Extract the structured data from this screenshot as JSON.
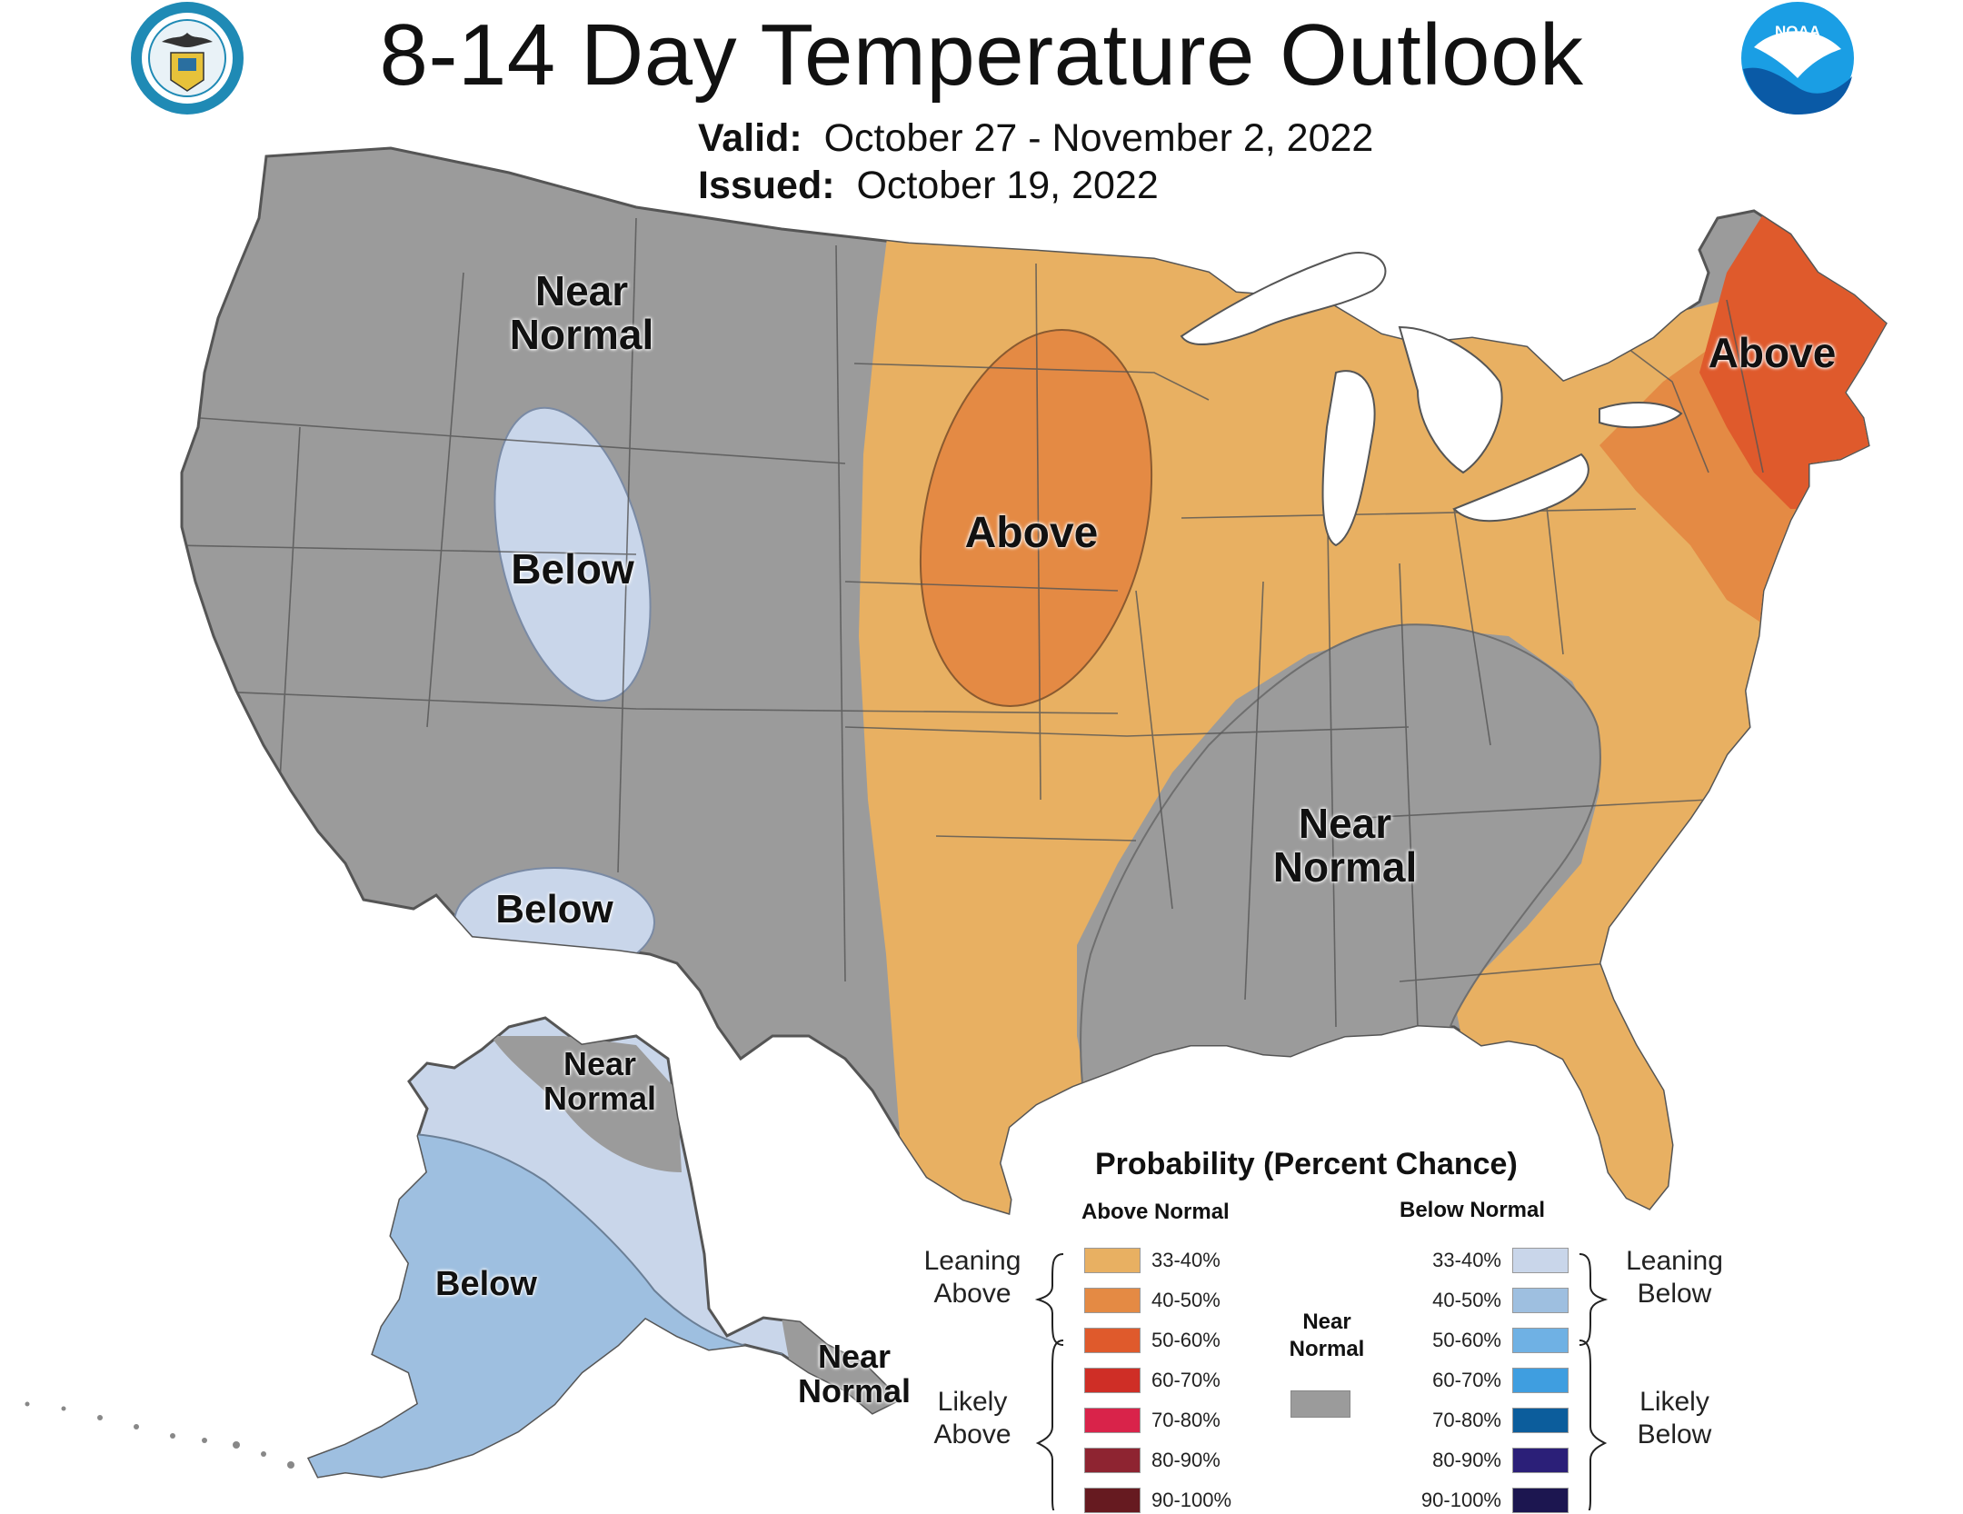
{
  "title": "8-14 Day Temperature Outlook",
  "valid": {
    "label": "Valid:",
    "value": "October 27 - November 2, 2022"
  },
  "issued": {
    "label": "Issued:",
    "value": "October 19, 2022"
  },
  "logos": {
    "left": "department-of-commerce-seal",
    "right": "noaa-logo",
    "right_text": "NOAA"
  },
  "colors": {
    "near_normal": "#9b9b9b",
    "above_33_40": "#e8b062",
    "above_40_50": "#e48a44",
    "above_50_60": "#df5a2c",
    "below_33_40": "#c9d6ea",
    "below_40_50": "#9ebfe0",
    "land_border": "#5a5a5a",
    "lakes": "#ffffff"
  },
  "region_labels": {
    "west_near_normal": "Near Normal",
    "utah_below": "Below",
    "az_below": "Below",
    "plains_above": "Above",
    "northeast_above": "Above",
    "southeast_near_normal": "Near Normal",
    "ak_north_near_normal": "Near Normal",
    "ak_below": "Below",
    "ak_se_near_normal": "Near Normal"
  },
  "legend": {
    "title": "Probability (Percent Chance)",
    "above_heading": "Above Normal",
    "below_heading": "Below Normal",
    "near_heading": "Near Normal",
    "leaning_above": "Leaning Above",
    "likely_above": "Likely Above",
    "leaning_below": "Leaning Below",
    "likely_below": "Likely Below",
    "near_color": "#9b9b9b",
    "above": [
      {
        "label": "33-40%",
        "color": "#e8b062"
      },
      {
        "label": "40-50%",
        "color": "#e48a44"
      },
      {
        "label": "50-60%",
        "color": "#df5a2c"
      },
      {
        "label": "60-70%",
        "color": "#cf2e26"
      },
      {
        "label": "70-80%",
        "color": "#d9234a"
      },
      {
        "label": "80-90%",
        "color": "#8e2431"
      },
      {
        "label": "90-100%",
        "color": "#661a20"
      }
    ],
    "below": [
      {
        "label": "33-40%",
        "color": "#c9d6ea"
      },
      {
        "label": "40-50%",
        "color": "#9ebfe0"
      },
      {
        "label": "50-60%",
        "color": "#6fb1e4"
      },
      {
        "label": "60-70%",
        "color": "#3f9ee0"
      },
      {
        "label": "70-80%",
        "color": "#0c5d9c"
      },
      {
        "label": "80-90%",
        "color": "#2b1f78"
      },
      {
        "label": "90-100%",
        "color": "#1c1650"
      }
    ]
  }
}
